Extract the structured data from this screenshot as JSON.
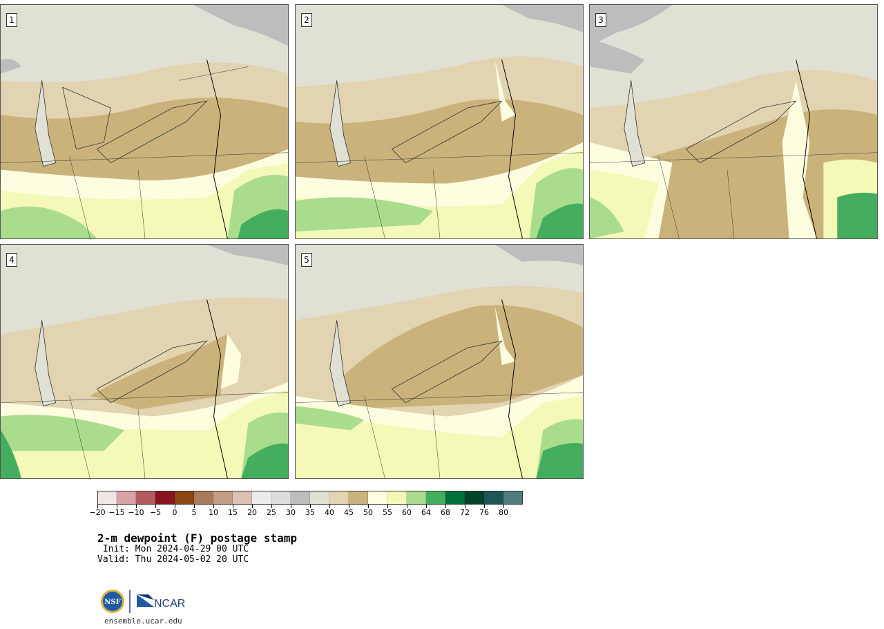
{
  "product": {
    "title": "2-m dewpoint (F) postage stamp",
    "init_line": " Init: Mon 2024-04-29 00 UTC",
    "valid_line": "Valid: Thu 2024-05-02 20 UTC"
  },
  "members": [
    {
      "label": "1"
    },
    {
      "label": "2"
    },
    {
      "label": "3"
    },
    {
      "label": "4"
    },
    {
      "label": "5"
    }
  ],
  "colorbar": {
    "ticks": [
      "−20",
      "−15",
      "−10",
      "−5",
      "0",
      "5",
      "10",
      "15",
      "20",
      "25",
      "30",
      "35",
      "40",
      "45",
      "50",
      "55",
      "60",
      "64",
      "68",
      "72",
      "76",
      "80"
    ],
    "colors": [
      "#f1e6e6",
      "#d9a3a6",
      "#b35c60",
      "#8b1320",
      "#8b4513",
      "#a8795a",
      "#c39c84",
      "#dcc0b3",
      "#ececec",
      "#dcdcdc",
      "#bdbdbd",
      "#e0e0d4",
      "#e2d3b1",
      "#c9b37b",
      "#fffde0",
      "#f4f9b8",
      "#a9dd8c",
      "#45ad5e",
      "#00713a",
      "#00452a",
      "#1d5555",
      "#4f7b7b"
    ]
  },
  "logo": {
    "nsf_text": "NSF",
    "ncar_text": "NCAR",
    "site": "ensemble.ucar.edu"
  }
}
